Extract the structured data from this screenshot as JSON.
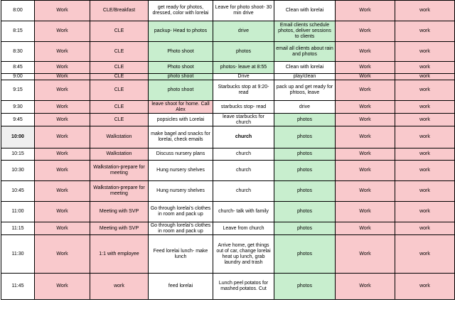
{
  "columns": [
    "time",
    "col1",
    "col2",
    "col3",
    "col4",
    "col5",
    "col6",
    "col7"
  ],
  "rows": [
    {
      "time": "8:00",
      "cells": [
        {
          "text": "Work",
          "style": "pink"
        },
        {
          "text": "CLE/Breakfast",
          "style": "pink"
        },
        {
          "text": "get ready for photos, dressed, color with lorelai",
          "style": "white"
        },
        {
          "text": "Leave for photo shoot- 30 min drive",
          "style": "white"
        },
        {
          "text": "Clean with lorelai",
          "style": "white"
        },
        {
          "text": "Work",
          "style": "pink"
        },
        {
          "text": "work",
          "style": "pink"
        }
      ]
    },
    {
      "time": "8:15",
      "cells": [
        {
          "text": "Work",
          "style": "pink"
        },
        {
          "text": "CLE",
          "style": "pink"
        },
        {
          "text": "packup- Head to photos",
          "style": "green"
        },
        {
          "text": "drive",
          "style": "green"
        },
        {
          "text": "Email clients schedule photos, deliver sessions to clients",
          "style": "green"
        },
        {
          "text": "Work",
          "style": "pink"
        },
        {
          "text": "work",
          "style": "pink"
        }
      ]
    },
    {
      "time": "8:30",
      "cells": [
        {
          "text": "Work",
          "style": "pink"
        },
        {
          "text": "CLE",
          "style": "pink"
        },
        {
          "text": "Photo shoot",
          "style": "green"
        },
        {
          "text": "photos",
          "style": "green"
        },
        {
          "text": "email all clients about rain and photos",
          "style": "green"
        },
        {
          "text": "Work",
          "style": "pink"
        },
        {
          "text": "work",
          "style": "pink"
        }
      ]
    },
    {
      "time": "8:45",
      "cells": [
        {
          "text": "Work",
          "style": "pink"
        },
        {
          "text": "CLE",
          "style": "pink"
        },
        {
          "text": "Photo shoot",
          "style": "green"
        },
        {
          "text": "photos- leave at 8:55",
          "style": "green"
        },
        {
          "text": "Clean with lorelai",
          "style": "white"
        },
        {
          "text": "Work",
          "style": "pink"
        },
        {
          "text": "work",
          "style": "pink"
        }
      ]
    },
    {
      "time": "9:00",
      "cells": [
        {
          "text": "Work",
          "style": "pink"
        },
        {
          "text": "CLE",
          "style": "pink"
        },
        {
          "text": "photo shoot",
          "style": "green"
        },
        {
          "text": "Drive",
          "style": "white"
        },
        {
          "text": "play/clean",
          "style": "white"
        },
        {
          "text": "Work",
          "style": "pink"
        },
        {
          "text": "work",
          "style": "pink"
        }
      ]
    },
    {
      "time": "9:15",
      "cells": [
        {
          "text": "Work",
          "style": "pink"
        },
        {
          "text": "CLE",
          "style": "pink"
        },
        {
          "text": "photo shoot",
          "style": "green"
        },
        {
          "text": "Starbucks stop at 9:20- read",
          "style": "white"
        },
        {
          "text": "pack up and get ready for phtoos, leave",
          "style": "white"
        },
        {
          "text": "Work",
          "style": "pink"
        },
        {
          "text": "work",
          "style": "pink"
        }
      ]
    },
    {
      "time": "9:30",
      "cells": [
        {
          "text": "Work",
          "style": "pink"
        },
        {
          "text": "CLE",
          "style": "pink"
        },
        {
          "text": "leave shoot for home. Call Alex",
          "style": "pink"
        },
        {
          "text": "starbucks stop- read",
          "style": "white"
        },
        {
          "text": "drive",
          "style": "white"
        },
        {
          "text": "Work",
          "style": "pink"
        },
        {
          "text": "work",
          "style": "pink"
        }
      ]
    },
    {
      "time": "9:45",
      "cells": [
        {
          "text": "Work",
          "style": "pink"
        },
        {
          "text": "CLE",
          "style": "pink"
        },
        {
          "text": "popsicles with Lorelai",
          "style": "white"
        },
        {
          "text": "leave starbucks for church",
          "style": "white"
        },
        {
          "text": "photos",
          "style": "green"
        },
        {
          "text": "Work",
          "style": "pink"
        },
        {
          "text": "work",
          "style": "pink"
        }
      ]
    },
    {
      "time": "10:00",
      "hl": true,
      "cells": [
        {
          "text": "Work",
          "style": "pink"
        },
        {
          "text": "Walkstation",
          "style": "pink"
        },
        {
          "text": "make bagel and snacks for lorelai, check emails",
          "style": "white"
        },
        {
          "text": "church",
          "style": "white bold"
        },
        {
          "text": "photos",
          "style": "green"
        },
        {
          "text": "Work",
          "style": "pink"
        },
        {
          "text": "work",
          "style": "pink"
        }
      ]
    },
    {
      "time": "10:15",
      "cells": [
        {
          "text": "Work",
          "style": "pink"
        },
        {
          "text": "Walkstation",
          "style": "pink"
        },
        {
          "text": "Discuss nursery plans",
          "style": "white"
        },
        {
          "text": "church",
          "style": "white"
        },
        {
          "text": "photos",
          "style": "green"
        },
        {
          "text": "Work",
          "style": "pink"
        },
        {
          "text": "work",
          "style": "pink"
        }
      ]
    },
    {
      "time": "10:30",
      "cells": [
        {
          "text": "Work",
          "style": "pink"
        },
        {
          "text": "Walkstation-prepare for meeting",
          "style": "pink"
        },
        {
          "text": "Hung nursery shelves",
          "style": "white"
        },
        {
          "text": "church",
          "style": "white"
        },
        {
          "text": "photos",
          "style": "green"
        },
        {
          "text": "Work",
          "style": "pink"
        },
        {
          "text": "work",
          "style": "pink"
        }
      ]
    },
    {
      "time": "10:45",
      "cells": [
        {
          "text": "Work",
          "style": "pink"
        },
        {
          "text": "Walkstation-prepare for meeting",
          "style": "pink"
        },
        {
          "text": "Hung nursery shelves",
          "style": "white"
        },
        {
          "text": "church",
          "style": "white"
        },
        {
          "text": "photos",
          "style": "green"
        },
        {
          "text": "Work",
          "style": "pink"
        },
        {
          "text": "work",
          "style": "pink"
        }
      ]
    },
    {
      "time": "11:00",
      "cells": [
        {
          "text": "Work",
          "style": "pink"
        },
        {
          "text": "Meeting with SVP",
          "style": "pink big"
        },
        {
          "text": "Go through lorelai's clothes in room and pack up",
          "style": "white"
        },
        {
          "text": "church- talk with family",
          "style": "white"
        },
        {
          "text": "photos",
          "style": "green"
        },
        {
          "text": "Work",
          "style": "pink"
        },
        {
          "text": "work",
          "style": "pink"
        }
      ]
    },
    {
      "time": "11:15",
      "cells": [
        {
          "text": "Work",
          "style": "pink"
        },
        {
          "text": "Meeting with SVP",
          "style": "pink"
        },
        {
          "text": "Go through lorelai's clothes in room and pack up",
          "style": "white"
        },
        {
          "text": "Leave from church",
          "style": "white"
        },
        {
          "text": "photos",
          "style": "green"
        },
        {
          "text": "Work",
          "style": "pink"
        },
        {
          "text": "work",
          "style": "pink"
        }
      ]
    },
    {
      "time": "11:30",
      "cells": [
        {
          "text": "Work",
          "style": "pink"
        },
        {
          "text": "1:1 with employee",
          "style": "pink"
        },
        {
          "text": "Feed lorelai lunch- make lunch",
          "style": "white"
        },
        {
          "text": "Arrive home, get things out of car, change lorelai heat up lunch, grab laundry and trash",
          "style": "white"
        },
        {
          "text": "photos",
          "style": "green"
        },
        {
          "text": "Work",
          "style": "pink"
        },
        {
          "text": "work",
          "style": "pink"
        }
      ]
    },
    {
      "time": "11:45",
      "cells": [
        {
          "text": "Work",
          "style": "pink"
        },
        {
          "text": "work",
          "style": "pink"
        },
        {
          "text": "feed lorelai",
          "style": "white"
        },
        {
          "text": "Lunch peel potatos for mashed potatos. Cut",
          "style": "white"
        },
        {
          "text": "photos",
          "style": "green"
        },
        {
          "text": "Work",
          "style": "pink"
        },
        {
          "text": "work",
          "style": "pink"
        }
      ]
    }
  ]
}
